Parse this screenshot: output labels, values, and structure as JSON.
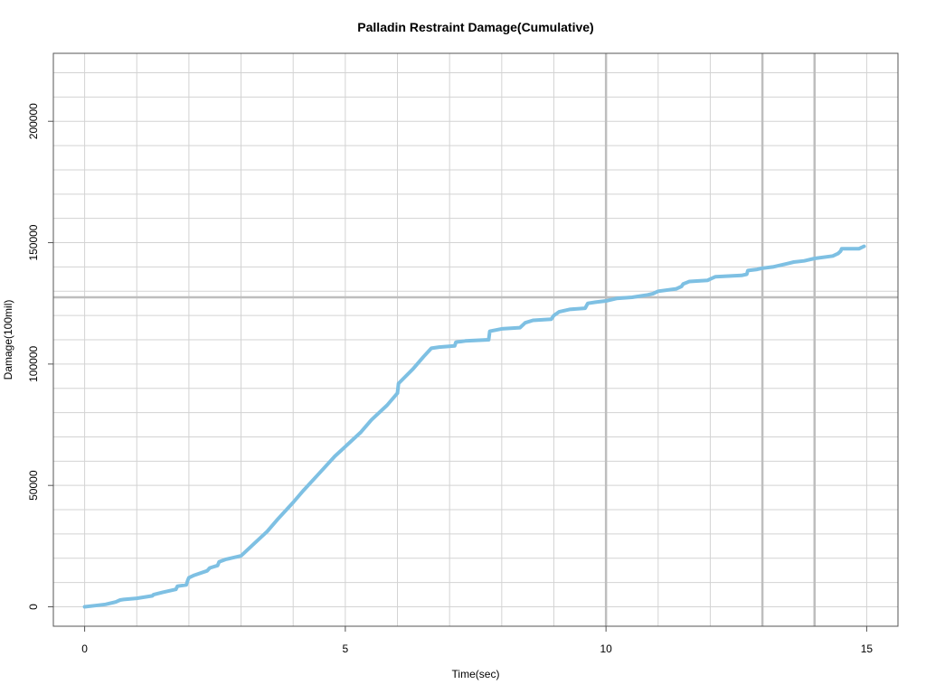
{
  "chart_data": {
    "type": "line",
    "title": "Palladin Restraint Damage(Cumulative)",
    "xlabel": "Time(sec)",
    "ylabel": "Damage(100mil)",
    "xlim": [
      -0.6,
      15.6
    ],
    "ylim": [
      -8000,
      228000
    ],
    "x_ticks": [
      0,
      5,
      10,
      15
    ],
    "y_ticks": [
      0,
      50000,
      100000,
      150000,
      200000
    ],
    "x_tick_labels": [
      "0",
      "5",
      "10",
      "15"
    ],
    "y_tick_labels": [
      "0",
      "50000",
      "100000",
      "150000",
      "200000"
    ],
    "grid": true,
    "grid_x_minor": [
      1,
      2,
      3,
      4,
      6,
      7,
      8,
      9,
      11,
      12,
      13,
      14
    ],
    "grid_y_minor": [
      10000,
      20000,
      30000,
      40000,
      60000,
      70000,
      80000,
      90000,
      110000,
      120000,
      130000,
      140000,
      160000,
      170000,
      180000,
      190000,
      210000,
      220000
    ],
    "reference_lines": {
      "horizontal": [
        127500
      ],
      "vertical": [
        10,
        13,
        14
      ]
    },
    "line_color": "#7ec0e3",
    "grid_color": "#d3d3d3",
    "ref_line_color": "#bebebe",
    "series": [
      {
        "x": [
          0,
          0.2,
          0.4,
          0.6,
          0.68,
          0.75,
          1.0,
          1.3,
          1.32,
          1.5,
          1.75,
          1.78,
          1.95,
          1.98,
          2.0,
          2.1,
          2.35,
          2.4,
          2.55,
          2.58,
          2.7,
          2.9,
          3.0,
          3.2,
          3.5,
          3.7,
          4.0,
          4.2,
          4.5,
          4.8,
          5.0,
          5.3,
          5.5,
          5.8,
          6.0,
          6.02,
          6.3,
          6.5,
          6.65,
          6.8,
          7.1,
          7.12,
          7.3,
          7.75,
          7.77,
          8.0,
          8.35,
          8.45,
          8.6,
          8.95,
          9.0,
          9.1,
          9.3,
          9.6,
          9.65,
          9.8,
          10.0,
          10.2,
          10.5,
          10.8,
          10.9,
          11.0,
          11.35,
          11.45,
          11.48,
          11.6,
          11.95,
          12.0,
          12.1,
          12.6,
          12.7,
          12.72,
          12.9,
          13.0,
          13.2,
          13.5,
          13.6,
          13.8,
          14.0,
          14.35,
          14.45,
          14.5,
          14.52,
          14.6,
          14.85,
          14.9,
          14.95
        ],
        "y": [
          0,
          500,
          1000,
          2000,
          2800,
          3000,
          3500,
          4500,
          5000,
          6000,
          7200,
          8500,
          9000,
          11000,
          12000,
          13000,
          14800,
          16000,
          17000,
          18500,
          19500,
          20500,
          21000,
          25000,
          31000,
          36000,
          43000,
          48000,
          55000,
          62000,
          66000,
          72000,
          77000,
          83000,
          88000,
          92000,
          98000,
          103000,
          106500,
          107000,
          107500,
          109000,
          109500,
          110000,
          113500,
          114500,
          115000,
          117000,
          118000,
          118500,
          120000,
          121500,
          122500,
          123000,
          125000,
          125500,
          126000,
          127000,
          127500,
          128500,
          129000,
          130000,
          131000,
          132000,
          133000,
          134000,
          134500,
          135000,
          136000,
          136500,
          137000,
          138500,
          139000,
          139500,
          140000,
          141500,
          142000,
          142500,
          143500,
          144500,
          145500,
          146500,
          147500,
          147500,
          147500,
          148000,
          148500
        ]
      }
    ]
  }
}
